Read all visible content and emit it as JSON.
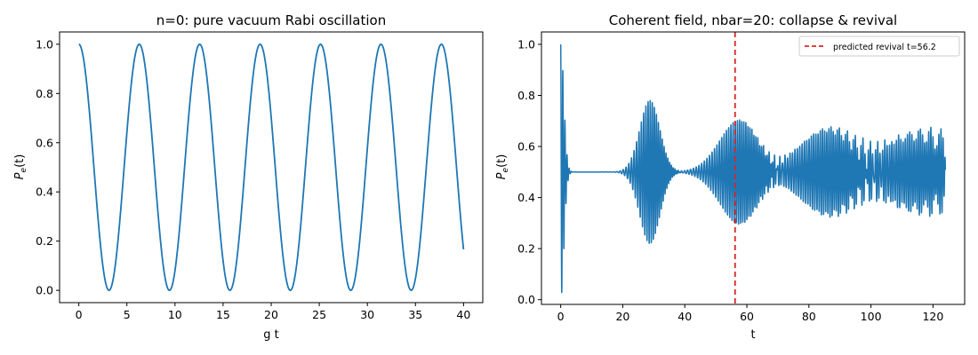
{
  "colors": {
    "series": "#1f77b4",
    "revival": "#d62728"
  },
  "chart_data": [
    {
      "type": "line",
      "title": "n=0: pure vacuum Rabi oscillation",
      "xlabel": "g t",
      "ylabel_main": "P",
      "ylabel_sub": "e",
      "ylabel_arg": "(t)",
      "xlim": [
        -2,
        42
      ],
      "ylim": [
        -0.05,
        1.05
      ],
      "xticks": [
        0,
        5,
        10,
        15,
        20,
        25,
        30,
        35,
        40
      ],
      "xtick_labels": [
        "0",
        "5",
        "10",
        "15",
        "20",
        "25",
        "30",
        "35",
        "40"
      ],
      "yticks": [
        0,
        0.2,
        0.4,
        0.6,
        0.8,
        1.0
      ],
      "ytick_labels": [
        "0.0",
        "0.2",
        "0.4",
        "0.6",
        "0.8",
        "1.0"
      ],
      "grid": false,
      "series": [
        {
          "formula": "cos^2(g t / 2)",
          "x_range": [
            0,
            40
          ],
          "color": "#1f77b4"
        }
      ]
    },
    {
      "type": "line",
      "title": "Coherent field, nbar=20: collapse & revival",
      "xlabel": "t",
      "ylabel_main": "P",
      "ylabel_sub": "e",
      "ylabel_arg": "(t)",
      "xlim": [
        -6.2,
        130.2
      ],
      "ylim": [
        -0.0185,
        1.0485
      ],
      "xticks": [
        0,
        20,
        40,
        60,
        80,
        100,
        120
      ],
      "xtick_labels": [
        "0",
        "20",
        "40",
        "60",
        "80",
        "100",
        "120"
      ],
      "yticks": [
        0,
        0.2,
        0.4,
        0.6,
        0.8,
        1.0
      ],
      "ytick_labels": [
        "0.0",
        "0.2",
        "0.4",
        "0.6",
        "0.8",
        "1.0"
      ],
      "grid": false,
      "nbar": 20,
      "x_range": [
        0,
        124
      ],
      "revival_t": 56.2,
      "legend": {
        "placement": "top-right",
        "entries": [
          {
            "label": "predicted revival t=56.2",
            "style": "dashed",
            "color": "#d62728"
          }
        ]
      }
    }
  ]
}
